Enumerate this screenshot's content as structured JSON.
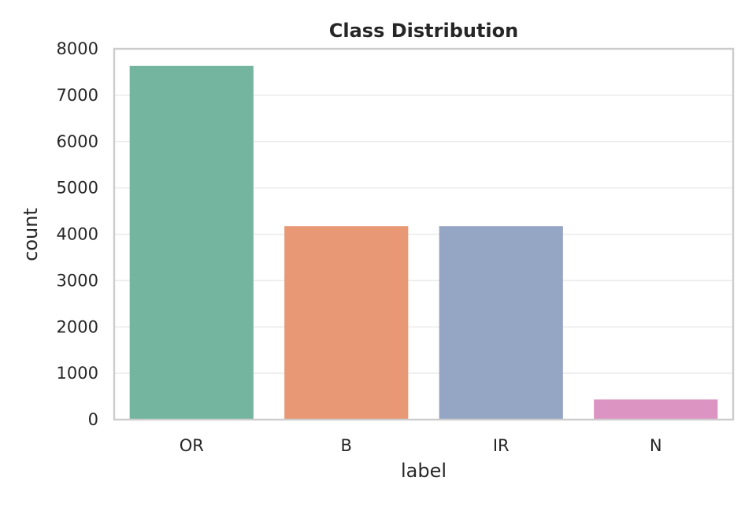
{
  "chart_data": {
    "type": "bar",
    "title": "Class Distribution",
    "xlabel": "label",
    "ylabel": "count",
    "categories": [
      "OR",
      "B",
      "IR",
      "N"
    ],
    "values": [
      7630,
      4175,
      4175,
      435
    ],
    "colors": [
      "#74b5a0",
      "#e89874",
      "#95a5c4",
      "#dc94c3"
    ],
    "ylim": [
      0,
      8000
    ],
    "yticks": [
      "0",
      "1000",
      "2000",
      "3000",
      "4000",
      "5000",
      "6000",
      "7000",
      "8000"
    ],
    "grid": true,
    "grid_color": "#ebebeb",
    "frame_color": "#cccccc"
  }
}
